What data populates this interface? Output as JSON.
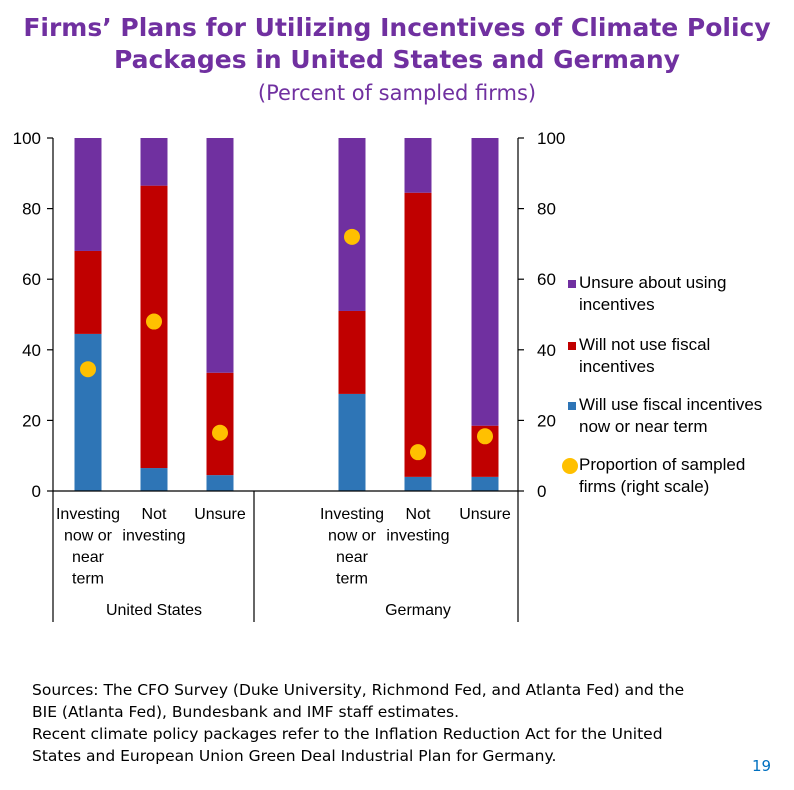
{
  "header": {
    "title_line1": "Firms’ Plans for Utilizing Incentives of Climate Policy",
    "title_line2": "Packages in United States and Germany",
    "subtitle": "(Percent of sampled firms)"
  },
  "chart_data": {
    "type": "bar",
    "stacked": true,
    "title": "Firms’ Plans for Utilizing Incentives of Climate Policy Packages in United States and Germany",
    "subtitle": "(Percent of sampled firms)",
    "groups": [
      {
        "name": "United States",
        "categories": [
          [
            "Investing",
            "now or",
            "near",
            "term"
          ],
          [
            "Not",
            "investing"
          ],
          [
            "Unsure"
          ]
        ]
      },
      {
        "name": "Germany",
        "categories": [
          [
            "Investing",
            "now or",
            "near",
            "term"
          ],
          [
            "Not",
            "investing"
          ],
          [
            "Unsure"
          ]
        ]
      }
    ],
    "series": [
      {
        "name": "Will use fiscal incentives now or near term",
        "color": "#2e75b6",
        "values": [
          44.5,
          6.5,
          4.5,
          27.5,
          4,
          4
        ]
      },
      {
        "name": "Will not use fiscal incentives",
        "color": "#c00000",
        "values": [
          23.5,
          80,
          29,
          23.5,
          80.5,
          14.5
        ]
      },
      {
        "name": "Unsure about using incentives",
        "color": "#7030a0",
        "values": [
          32,
          13.5,
          66.5,
          49,
          15.5,
          81.5
        ]
      }
    ],
    "dots": {
      "name": "Proportion of sampled firms (right scale)",
      "color": "#ffc000",
      "values": [
        34.5,
        48,
        16.5,
        72,
        11,
        15.5
      ]
    },
    "ylim": [
      0,
      100
    ],
    "y_ticks": [
      0,
      20,
      40,
      60,
      80,
      100
    ],
    "y2lim": [
      0,
      100
    ],
    "y2_ticks": [
      0,
      20,
      40,
      60,
      80,
      100
    ],
    "legend": [
      {
        "lines": [
          "Unsure about using",
          "incentives"
        ],
        "color": "#7030a0",
        "marker": "square"
      },
      {
        "lines": [
          "Will not use fiscal",
          "incentives"
        ],
        "color": "#c00000",
        "marker": "square"
      },
      {
        "lines": [
          "Will use fiscal incentives",
          "now or near term"
        ],
        "color": "#2e75b6",
        "marker": "square"
      },
      {
        "lines": [
          "Proportion of sampled",
          "firms (right scale)"
        ],
        "color": "#ffc000",
        "marker": "circle"
      }
    ],
    "legend_placement": "right",
    "grid": false
  },
  "footer": {
    "sources_line1": "Sources: The CFO Survey (Duke University, Richmond Fed, and Atlanta Fed) and the",
    "sources_line2": "BIE (Atlanta Fed), Bundesbank and IMF staff estimates.",
    "note_line1": "Recent climate policy packages refer to the Inflation Reduction Act for the United",
    "note_line2": "States and European Union Green Deal Industrial Plan for Germany."
  },
  "page_number": "19"
}
